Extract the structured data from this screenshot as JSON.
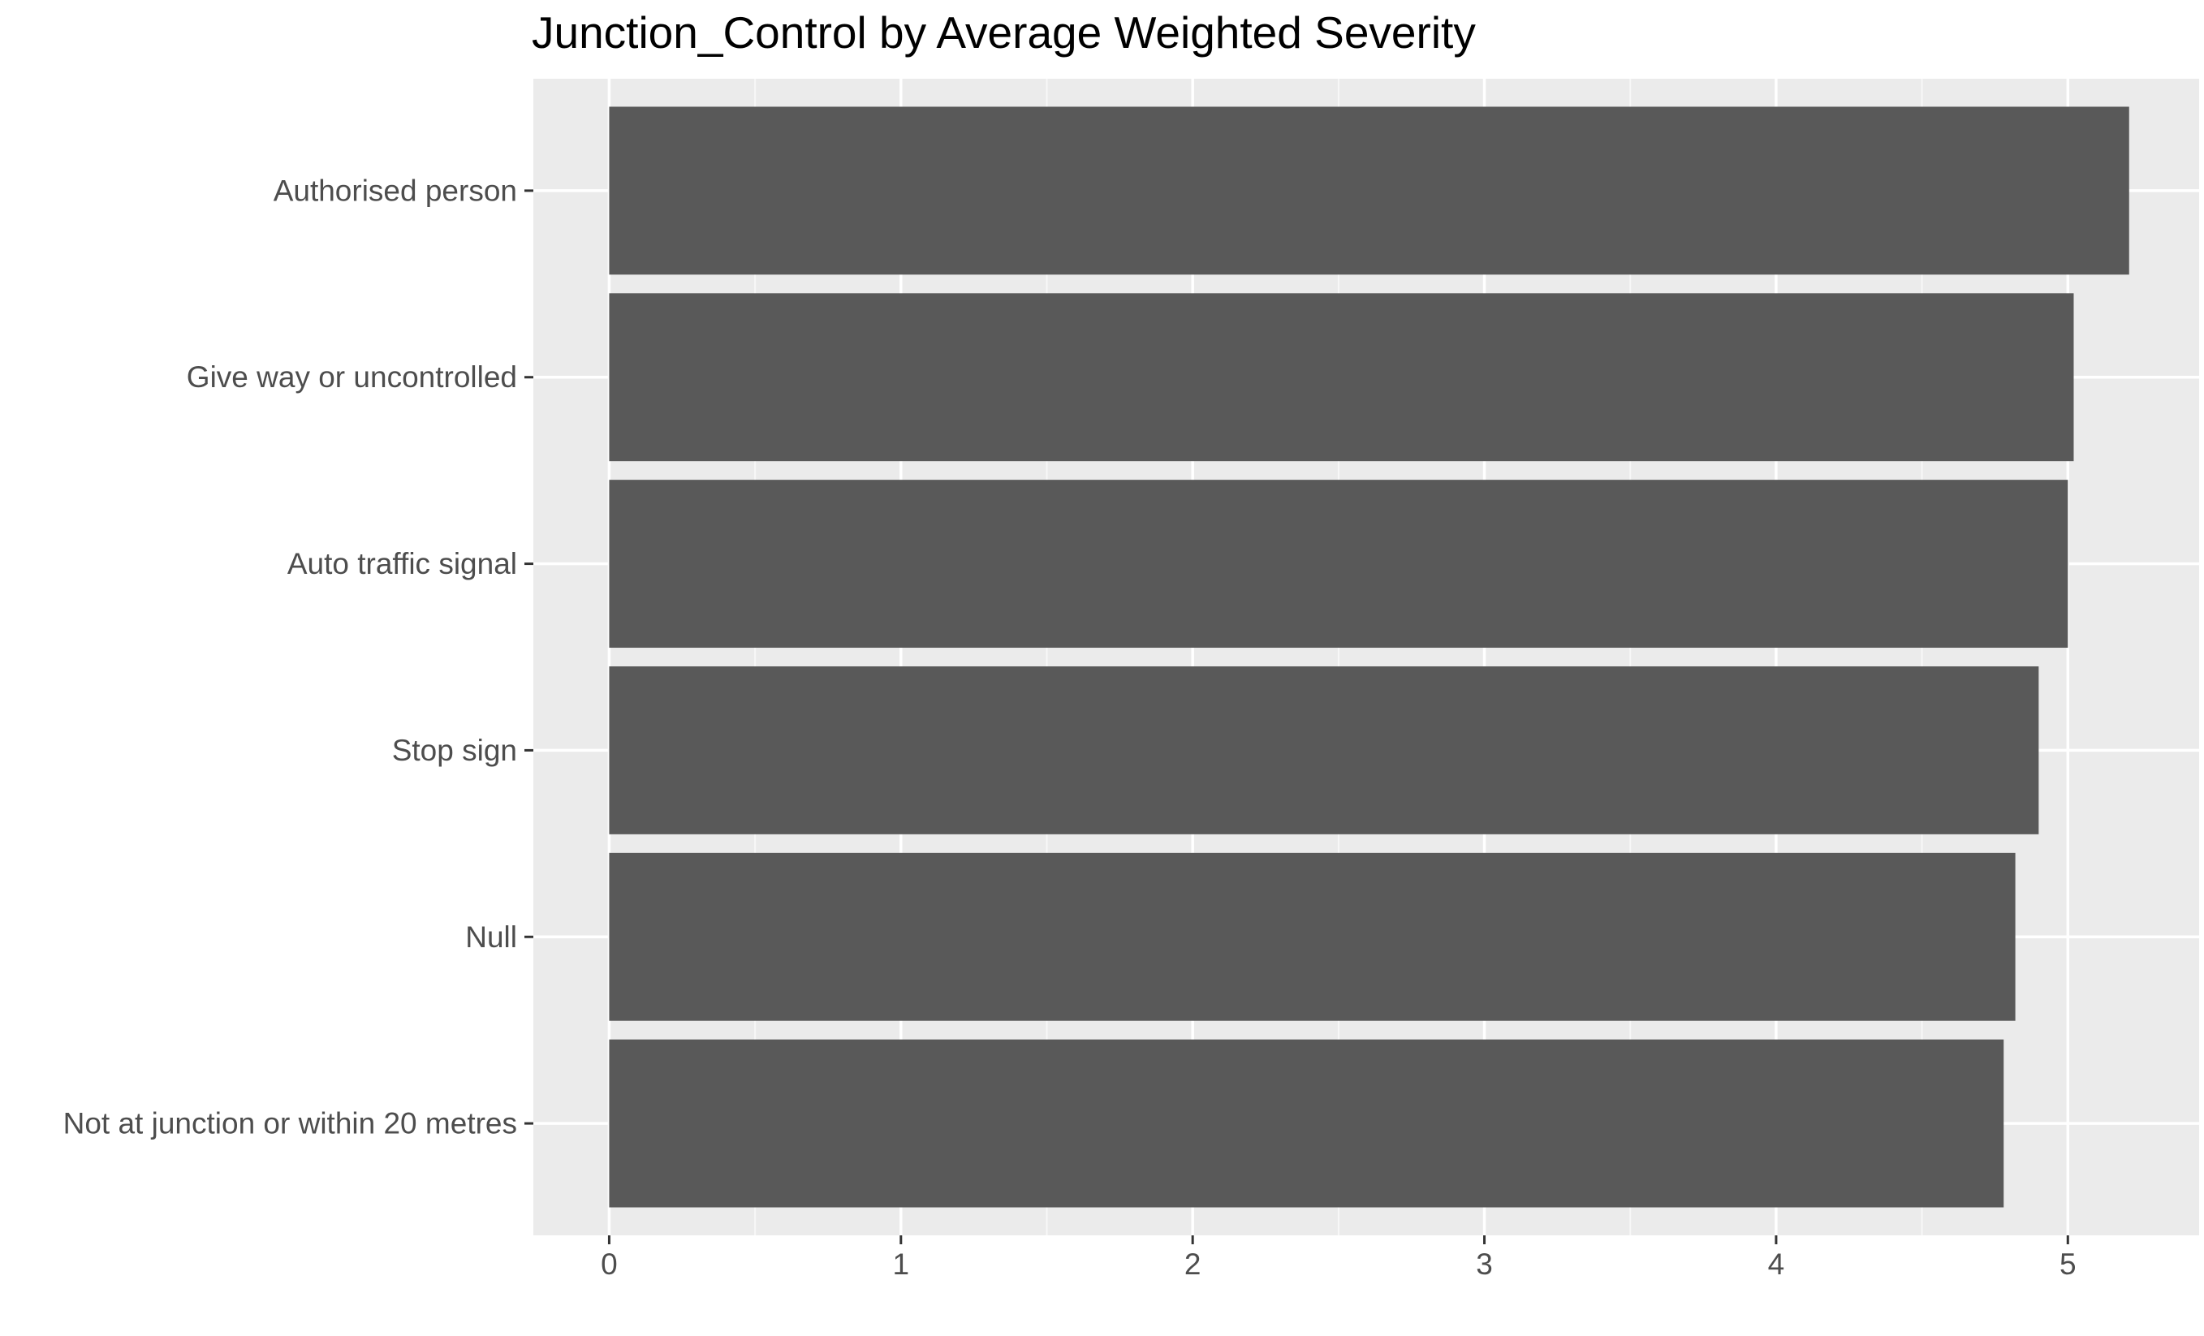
{
  "chart_data": {
    "type": "bar",
    "orientation": "horizontal",
    "title": "Junction_Control by Average Weighted Severity",
    "xlabel": "",
    "ylabel": "",
    "categories": [
      "Authorised person",
      "Give way or uncontrolled",
      "Auto traffic signal",
      "Stop sign",
      "Null",
      "Not at junction or within 20 metres"
    ],
    "values": [
      5.21,
      5.02,
      5.0,
      4.9,
      4.82,
      4.78
    ],
    "xlim": [
      -0.26,
      5.45
    ],
    "xticks": [
      "0",
      "1",
      "2",
      "3",
      "4",
      "5"
    ],
    "grid": true,
    "legend": "none",
    "colors": {
      "bar": "#595959",
      "panel": "#ebebeb",
      "grid_major": "#ffffff",
      "grid_minor": "#f7f7f7",
      "tick": "#333333",
      "text": "#4d4d4d"
    }
  }
}
